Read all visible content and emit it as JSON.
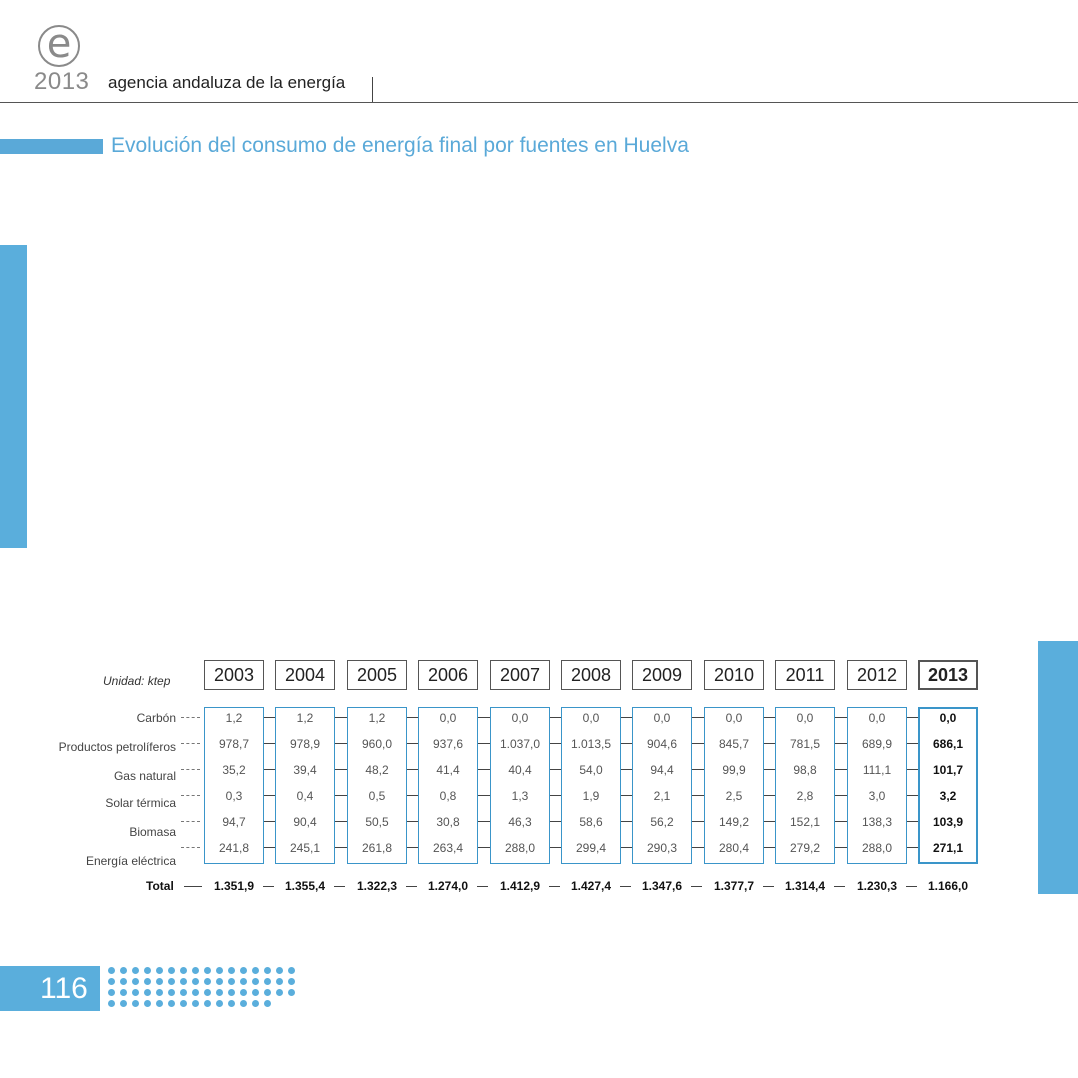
{
  "header": {
    "logo_letter": "e",
    "logo_year": "2013",
    "agency": "agencia andaluza de la energía"
  },
  "title": "Evolución del consumo de energía final por fuentes en Huelva",
  "unit_label": "Unidad: ktep",
  "page_number": "116",
  "colors": {
    "accent": "#5aaedc",
    "title": "#5aa9d8",
    "table_border": "#3a95c9"
  },
  "chart_data": {
    "type": "table",
    "title": "Evolución del consumo de energía final por fuentes en Huelva",
    "unit": "ktep",
    "years": [
      "2003",
      "2004",
      "2005",
      "2006",
      "2007",
      "2008",
      "2009",
      "2010",
      "2011",
      "2012",
      "2013"
    ],
    "row_labels": [
      "Carbón",
      "Productos petrolíferos",
      "Gas natural",
      "Solar térmica",
      "Biomasa",
      "Energía eléctrica"
    ],
    "rows": [
      [
        "1,2",
        "978,7",
        "35,2",
        "0,3",
        "94,7",
        "241,8"
      ],
      [
        "1,2",
        "978,9",
        "39,4",
        "0,4",
        "90,4",
        "245,1"
      ],
      [
        "1,2",
        "960,0",
        "48,2",
        "0,5",
        "50,5",
        "261,8"
      ],
      [
        "0,0",
        "937,6",
        "41,4",
        "0,8",
        "30,8",
        "263,4"
      ],
      [
        "0,0",
        "1.037,0",
        "40,4",
        "1,3",
        "46,3",
        "288,0"
      ],
      [
        "0,0",
        "1.013,5",
        "54,0",
        "1,9",
        "58,6",
        "299,4"
      ],
      [
        "0,0",
        "904,6",
        "94,4",
        "2,1",
        "56,2",
        "290,3"
      ],
      [
        "0,0",
        "845,7",
        "99,9",
        "2,5",
        "149,2",
        "280,4"
      ],
      [
        "0,0",
        "781,5",
        "98,8",
        "2,8",
        "152,1",
        "279,2"
      ],
      [
        "0,0",
        "689,9",
        "111,1",
        "3,0",
        "138,3",
        "288,0"
      ],
      [
        "0,0",
        "686,1",
        "101,7",
        "3,2",
        "103,9",
        "271,1"
      ]
    ],
    "total_label": "Total",
    "totals": [
      "1.351,9",
      "1.355,4",
      "1.322,3",
      "1.274,0",
      "1.412,9",
      "1.427,4",
      "1.347,6",
      "1.377,7",
      "1.314,4",
      "1.230,3",
      "1.166,0"
    ]
  }
}
